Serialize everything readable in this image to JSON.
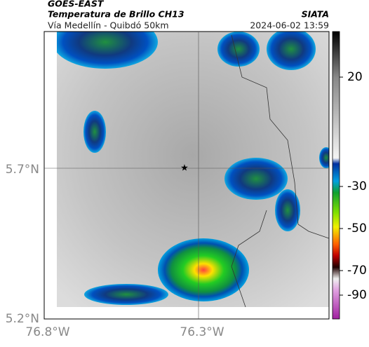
{
  "header": {
    "satellite": "GOES-EAST",
    "product": "Temperatura de Brillo CH13",
    "brand": "SIATA",
    "region": "Vía Medellín - Quibdó 50km",
    "timestamp": "2024-06-02 13:59"
  },
  "axes": {
    "y_labels": [
      "5.7°N",
      "5.2°N"
    ],
    "x_labels": [
      "76.8°W",
      "76.3°W"
    ]
  },
  "colorbar": {
    "ticks": [
      "20",
      "-30",
      "-50",
      "-70",
      "-90"
    ]
  }
}
